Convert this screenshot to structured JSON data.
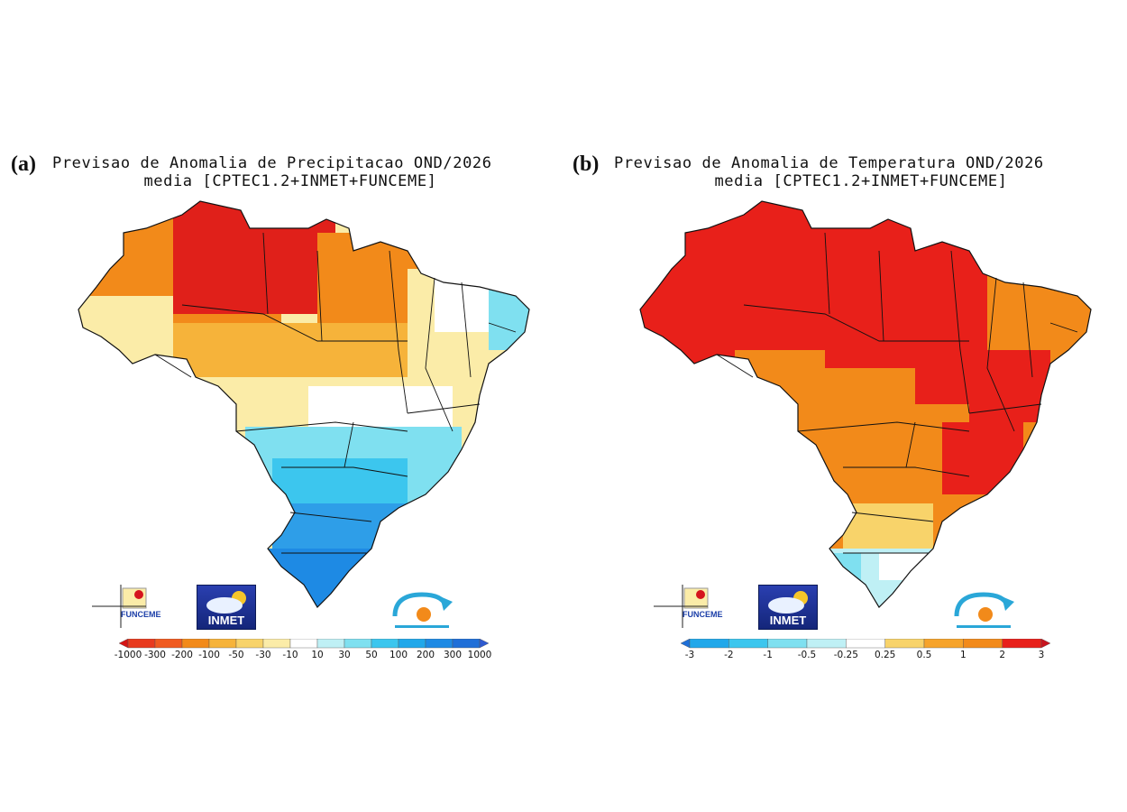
{
  "panels": [
    {
      "letter": "(a)",
      "title_line1": "Previsao de Anomalia de Precipitacao OND/2026",
      "title_line2": "media [CPTEC1.2+INMET+FUNCEME]",
      "legend": {
        "labels": [
          "-1000",
          "-300",
          "-200",
          "-100",
          "-50",
          "-30",
          "-10",
          "10",
          "30",
          "50",
          "100",
          "200",
          "300",
          "1000"
        ],
        "colors": [
          "#d51414",
          "#e83a1e",
          "#f05a20",
          "#f28a1a",
          "#f6b33a",
          "#f8d36a",
          "#fbeca8",
          "#ffffff",
          "#bff0f5",
          "#7fe0f0",
          "#3cc6ee",
          "#21a8ea",
          "#1e8ae4",
          "#1f6fd8",
          "#2e5ad0"
        ]
      },
      "map_zones": [
        {
          "zone": "north-west-amazon",
          "color": "#f28a1a"
        },
        {
          "zone": "roraima-para-north",
          "color": "#e0201a"
        },
        {
          "zone": "west-edge",
          "color": "#f8d36a"
        },
        {
          "zone": "central-west",
          "color": "#fbeca8"
        },
        {
          "zone": "north-east",
          "color": "#ffffff"
        },
        {
          "zone": "north-east-coast",
          "color": "#7fe0f0"
        },
        {
          "zone": "south-east",
          "color": "#3cc6ee"
        },
        {
          "zone": "south",
          "color": "#1e8ae4"
        }
      ],
      "logos": {
        "funceme": "FUNCEME",
        "inmet": "INMET",
        "inpe": "INPE"
      }
    },
    {
      "letter": "(b)",
      "title_line1": "Previsao de Anomalia de Temperatura OND/2026",
      "title_line2": "media [CPTEC1.2+INMET+FUNCEME]",
      "legend": {
        "labels": [
          "-3",
          "-2",
          "-1",
          "-0.5",
          "-0.25",
          "0.25",
          "0.5",
          "1",
          "2",
          "3"
        ],
        "colors": [
          "#1e6fd8",
          "#21a8ea",
          "#3cc6ee",
          "#7fe0f0",
          "#bff0f5",
          "#ffffff",
          "#f8d36a",
          "#f6a32a",
          "#f28a1a",
          "#e8201a",
          "#c8141e"
        ]
      },
      "map_zones": [
        {
          "zone": "amazon-north",
          "color": "#e8201a"
        },
        {
          "zone": "central-west",
          "color": "#f28a1a"
        },
        {
          "zone": "north-east",
          "color": "#f28a1a"
        },
        {
          "zone": "south-east-hot",
          "color": "#e8201a"
        },
        {
          "zone": "south",
          "color": "#f8d36a"
        },
        {
          "zone": "south-tip",
          "color": "#7fe0f0"
        }
      ],
      "logos": {
        "funceme": "FUNCEME",
        "inmet": "INMET",
        "inpe": "INPE"
      }
    }
  ]
}
